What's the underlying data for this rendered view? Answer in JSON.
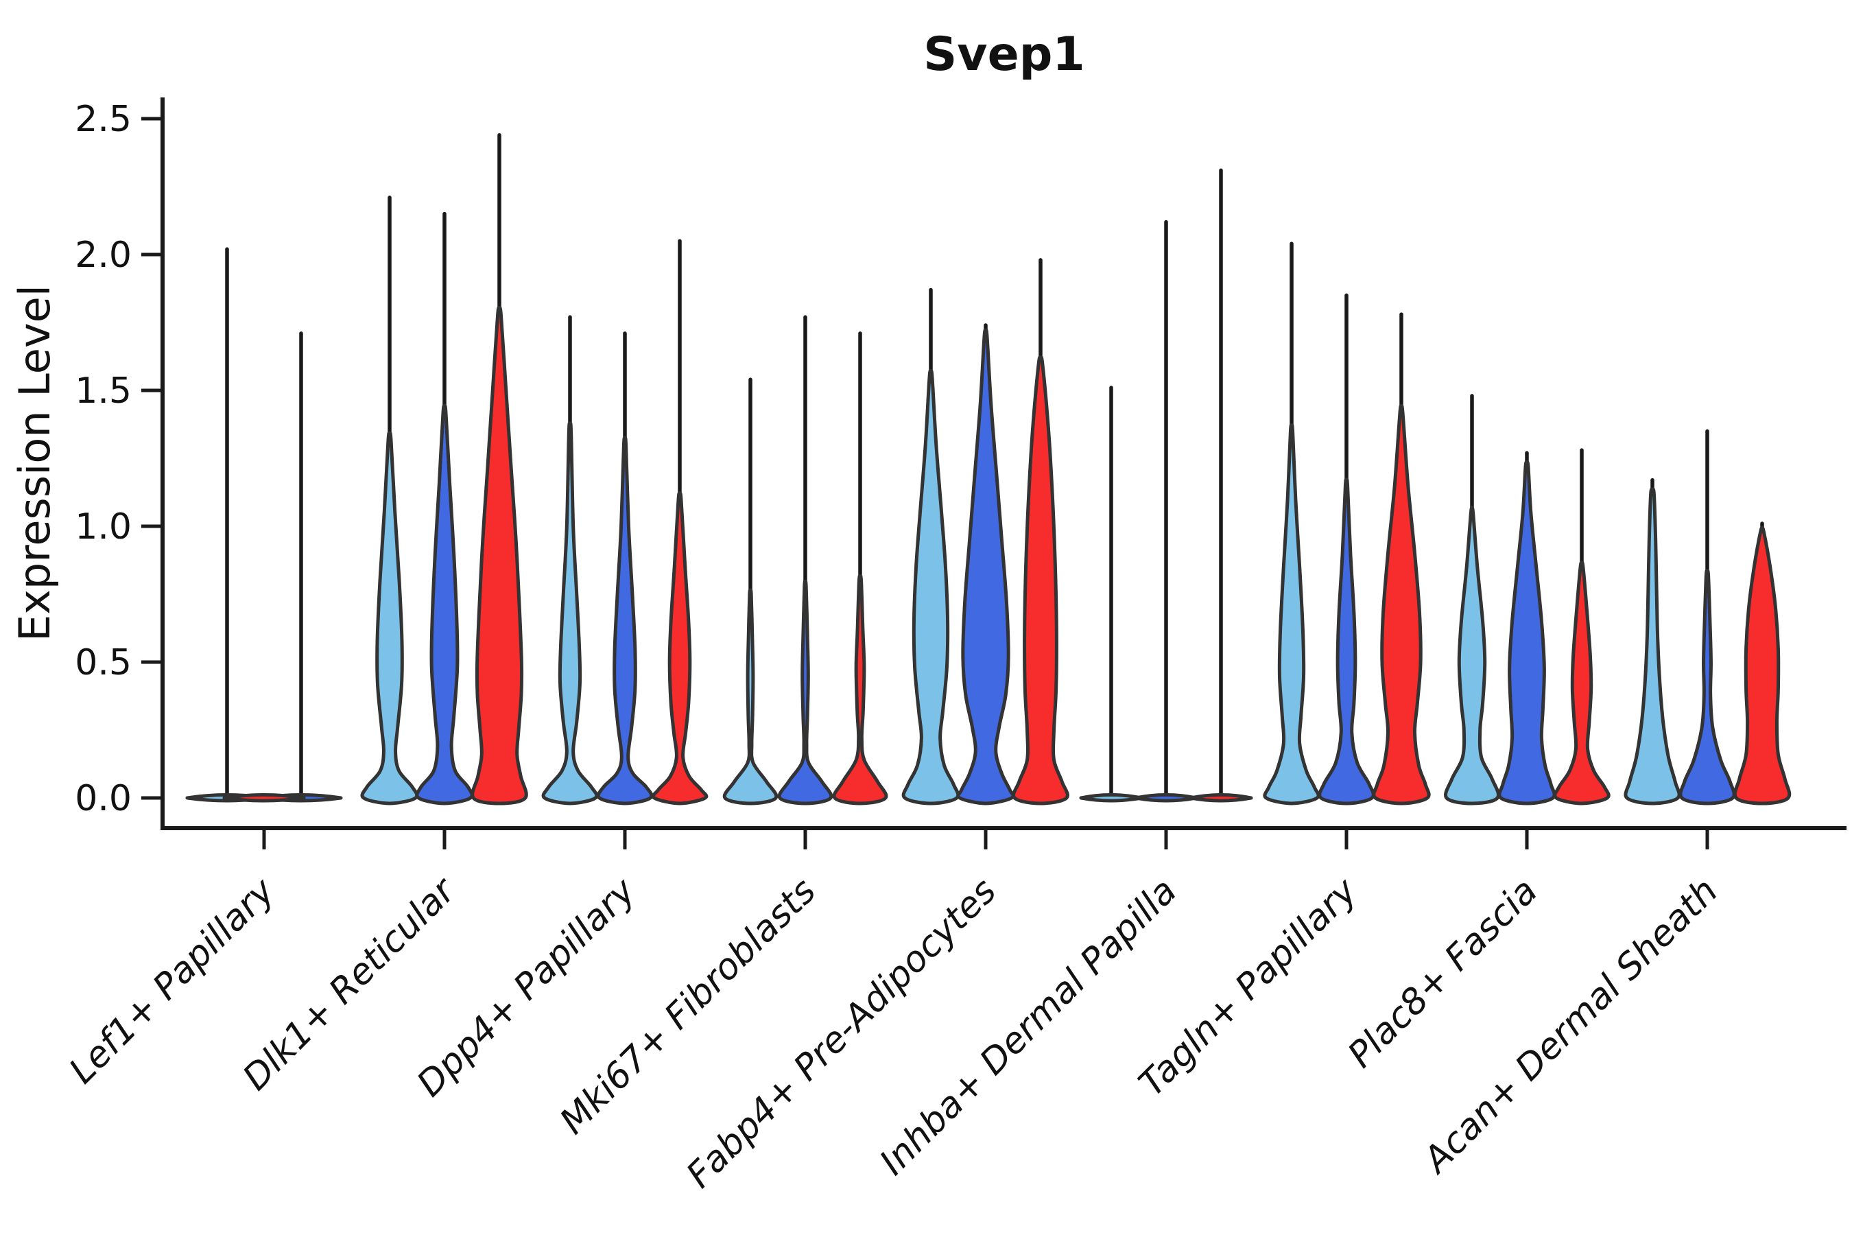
{
  "title": "Svep1",
  "chart_data": {
    "type": "violin",
    "title": "Svep1",
    "ylabel": "Expression Level",
    "xlabel": "",
    "ylim": [
      0,
      2.5
    ],
    "yticks": [
      0.0,
      0.5,
      1.0,
      1.5,
      2.0,
      2.5
    ],
    "grid": false,
    "legend": "none",
    "colors": {
      "series": [
        "#7CC2E8",
        "#4169E1",
        "#F72C2C"
      ],
      "outline": "#333333",
      "axis": "#1a1a1a",
      "background": "#ffffff"
    },
    "categories": [
      "Lef1+ Papillary",
      "Dlk1+ Reticular",
      "Dpp4+ Papillary",
      "Mki67+ Fibroblasts",
      "Fabp4+ Pre-Adipocytes",
      "Inhba+ Dermal Papilla",
      "Tagln+ Papillary",
      "Plac8+ Fascia",
      "Acan+ Dermal Sheath"
    ],
    "groups": [
      {
        "label": "Lef1+ Papillary",
        "violins": [
          {
            "series": 0,
            "max": 2.02,
            "flat": true,
            "xoff": -54,
            "lens_hw": 58
          },
          {
            "series": 1,
            "max": 1.71,
            "flat": true,
            "xoff": 54,
            "lens_hw": 58
          },
          {
            "series": 2,
            "max": 0.0,
            "flat": true,
            "xoff": 0,
            "lens_hw": 58
          }
        ]
      },
      {
        "label": "Dlk1+ Reticular",
        "violins": [
          {
            "series": 0,
            "max": 2.21,
            "profile": [
              [
                1.32,
                0.05
              ],
              [
                1.05,
                0.2
              ],
              [
                0.8,
                0.36
              ],
              [
                0.58,
                0.46
              ],
              [
                0.42,
                0.45
              ],
              [
                0.26,
                0.3
              ],
              [
                0.17,
                0.22
              ],
              [
                0.1,
                0.35
              ],
              [
                0.04,
                0.85
              ],
              [
                0,
                0.97
              ]
            ]
          },
          {
            "series": 1,
            "max": 2.15,
            "profile": [
              [
                1.42,
                0.05
              ],
              [
                1.15,
                0.2
              ],
              [
                0.9,
                0.35
              ],
              [
                0.65,
                0.46
              ],
              [
                0.48,
                0.48
              ],
              [
                0.3,
                0.35
              ],
              [
                0.19,
                0.26
              ],
              [
                0.1,
                0.4
              ],
              [
                0.04,
                0.88
              ],
              [
                0,
                0.97
              ]
            ]
          },
          {
            "series": 2,
            "max": 2.44,
            "profile": [
              [
                1.78,
                0.06
              ],
              [
                1.5,
                0.25
              ],
              [
                1.2,
                0.45
              ],
              [
                0.95,
                0.62
              ],
              [
                0.7,
                0.75
              ],
              [
                0.5,
                0.83
              ],
              [
                0.38,
                0.82
              ],
              [
                0.25,
                0.72
              ],
              [
                0.16,
                0.66
              ],
              [
                0.08,
                0.8
              ],
              [
                0,
                0.97
              ]
            ]
          }
        ]
      },
      {
        "label": "Dpp4+ Papillary",
        "violins": [
          {
            "series": 0,
            "max": 1.77,
            "profile": [
              [
                1.35,
                0.04
              ],
              [
                1.0,
                0.12
              ],
              [
                0.75,
                0.25
              ],
              [
                0.55,
                0.35
              ],
              [
                0.42,
                0.37
              ],
              [
                0.28,
                0.25
              ],
              [
                0.17,
                0.12
              ],
              [
                0.1,
                0.3
              ],
              [
                0.04,
                0.8
              ],
              [
                0,
                0.95
              ]
            ]
          },
          {
            "series": 1,
            "max": 1.71,
            "profile": [
              [
                1.3,
                0.04
              ],
              [
                1.0,
                0.14
              ],
              [
                0.75,
                0.28
              ],
              [
                0.55,
                0.38
              ],
              [
                0.4,
                0.38
              ],
              [
                0.26,
                0.25
              ],
              [
                0.15,
                0.12
              ],
              [
                0.09,
                0.3
              ],
              [
                0.04,
                0.8
              ],
              [
                0,
                0.95
              ]
            ]
          },
          {
            "series": 2,
            "max": 2.05,
            "profile": [
              [
                1.1,
                0.05
              ],
              [
                0.85,
                0.2
              ],
              [
                0.65,
                0.33
              ],
              [
                0.5,
                0.38
              ],
              [
                0.35,
                0.33
              ],
              [
                0.24,
                0.22
              ],
              [
                0.15,
                0.12
              ],
              [
                0.08,
                0.35
              ],
              [
                0.03,
                0.8
              ],
              [
                0,
                0.95
              ]
            ]
          }
        ]
      },
      {
        "label": "Mki67+ Fibroblasts",
        "violins": [
          {
            "series": 0,
            "max": 1.54,
            "profile": [
              [
                0.75,
                0.03
              ],
              [
                0.6,
                0.07
              ],
              [
                0.45,
                0.1
              ],
              [
                0.3,
                0.08
              ],
              [
                0.2,
                0.05
              ],
              [
                0.13,
                0.1
              ],
              [
                0.06,
                0.6
              ],
              [
                0,
                0.95
              ]
            ]
          },
          {
            "series": 1,
            "max": 1.77,
            "profile": [
              [
                0.78,
                0.03
              ],
              [
                0.6,
                0.08
              ],
              [
                0.45,
                0.11
              ],
              [
                0.3,
                0.08
              ],
              [
                0.2,
                0.05
              ],
              [
                0.13,
                0.12
              ],
              [
                0.06,
                0.62
              ],
              [
                0,
                0.95
              ]
            ]
          },
          {
            "series": 2,
            "max": 1.71,
            "profile": [
              [
                0.8,
                0.04
              ],
              [
                0.62,
                0.1
              ],
              [
                0.48,
                0.15
              ],
              [
                0.32,
                0.11
              ],
              [
                0.22,
                0.06
              ],
              [
                0.14,
                0.15
              ],
              [
                0.06,
                0.65
              ],
              [
                0,
                0.95
              ]
            ]
          }
        ]
      },
      {
        "label": "Fabp4+ Pre-Adipocytes",
        "violins": [
          {
            "series": 0,
            "max": 1.87,
            "profile": [
              [
                1.55,
                0.05
              ],
              [
                1.3,
                0.2
              ],
              [
                1.05,
                0.4
              ],
              [
                0.85,
                0.55
              ],
              [
                0.65,
                0.63
              ],
              [
                0.48,
                0.6
              ],
              [
                0.32,
                0.45
              ],
              [
                0.22,
                0.35
              ],
              [
                0.12,
                0.5
              ],
              [
                0.05,
                0.85
              ],
              [
                0,
                0.97
              ]
            ]
          },
          {
            "series": 1,
            "max": 1.74,
            "profile": [
              [
                1.7,
                0.05
              ],
              [
                1.45,
                0.2
              ],
              [
                1.2,
                0.4
              ],
              [
                0.95,
                0.6
              ],
              [
                0.72,
                0.78
              ],
              [
                0.52,
                0.85
              ],
              [
                0.38,
                0.75
              ],
              [
                0.26,
                0.5
              ],
              [
                0.17,
                0.38
              ],
              [
                0.09,
                0.6
              ],
              [
                0.03,
                0.9
              ],
              [
                0,
                0.97
              ]
            ]
          },
          {
            "series": 2,
            "max": 1.98,
            "profile": [
              [
                1.6,
                0.07
              ],
              [
                1.35,
                0.3
              ],
              [
                1.1,
                0.45
              ],
              [
                0.85,
                0.55
              ],
              [
                0.6,
                0.6
              ],
              [
                0.4,
                0.58
              ],
              [
                0.25,
                0.5
              ],
              [
                0.14,
                0.5
              ],
              [
                0.06,
                0.8
              ],
              [
                0,
                0.97
              ]
            ]
          }
        ]
      },
      {
        "label": "Inhba+ Dermal Papilla",
        "violins": [
          {
            "series": 0,
            "max": 1.51,
            "flat": true,
            "xoff": -80,
            "lens_hw": 44
          },
          {
            "series": 1,
            "max": 2.12,
            "flat": true,
            "xoff": 0,
            "lens_hw": 44
          },
          {
            "series": 2,
            "max": 2.31,
            "flat": true,
            "xoff": 80,
            "lens_hw": 44
          }
        ]
      },
      {
        "label": "Tagln+ Papillary",
        "violins": [
          {
            "series": 0,
            "max": 2.04,
            "profile": [
              [
                1.35,
                0.04
              ],
              [
                1.1,
                0.15
              ],
              [
                0.85,
                0.3
              ],
              [
                0.62,
                0.42
              ],
              [
                0.45,
                0.45
              ],
              [
                0.3,
                0.35
              ],
              [
                0.2,
                0.3
              ],
              [
                0.1,
                0.55
              ],
              [
                0.04,
                0.85
              ],
              [
                0,
                0.95
              ]
            ]
          },
          {
            "series": 1,
            "max": 1.85,
            "profile": [
              [
                1.15,
                0.04
              ],
              [
                0.9,
                0.15
              ],
              [
                0.68,
                0.28
              ],
              [
                0.5,
                0.33
              ],
              [
                0.35,
                0.28
              ],
              [
                0.24,
                0.2
              ],
              [
                0.13,
                0.4
              ],
              [
                0.05,
                0.85
              ],
              [
                0,
                0.95
              ]
            ]
          },
          {
            "series": 2,
            "max": 1.78,
            "profile": [
              [
                1.42,
                0.05
              ],
              [
                1.15,
                0.25
              ],
              [
                0.9,
                0.5
              ],
              [
                0.68,
                0.68
              ],
              [
                0.5,
                0.72
              ],
              [
                0.35,
                0.6
              ],
              [
                0.24,
                0.5
              ],
              [
                0.12,
                0.65
              ],
              [
                0.05,
                0.9
              ],
              [
                0,
                0.97
              ]
            ]
          }
        ]
      },
      {
        "label": "Plac8+ Fascia",
        "violins": [
          {
            "series": 0,
            "max": 1.48,
            "profile": [
              [
                1.05,
                0.04
              ],
              [
                0.85,
                0.2
              ],
              [
                0.65,
                0.4
              ],
              [
                0.5,
                0.48
              ],
              [
                0.35,
                0.4
              ],
              [
                0.25,
                0.3
              ],
              [
                0.15,
                0.35
              ],
              [
                0.07,
                0.75
              ],
              [
                0,
                0.95
              ]
            ]
          },
          {
            "series": 1,
            "max": 1.27,
            "profile": [
              [
                1.22,
                0.05
              ],
              [
                1.05,
                0.15
              ],
              [
                0.85,
                0.35
              ],
              [
                0.65,
                0.55
              ],
              [
                0.48,
                0.65
              ],
              [
                0.33,
                0.6
              ],
              [
                0.22,
                0.55
              ],
              [
                0.12,
                0.68
              ],
              [
                0.05,
                0.9
              ],
              [
                0,
                0.97
              ]
            ]
          },
          {
            "series": 2,
            "max": 1.28,
            "profile": [
              [
                0.85,
                0.05
              ],
              [
                0.68,
                0.2
              ],
              [
                0.52,
                0.32
              ],
              [
                0.4,
                0.35
              ],
              [
                0.28,
                0.28
              ],
              [
                0.18,
                0.22
              ],
              [
                0.1,
                0.45
              ],
              [
                0.04,
                0.85
              ],
              [
                0,
                0.95
              ]
            ]
          }
        ]
      },
      {
        "label": "Acan+ Dermal Sheath",
        "violins": [
          {
            "series": 0,
            "max": 1.17,
            "profile": [
              [
                1.12,
                0.06
              ],
              [
                0.95,
                0.12
              ],
              [
                0.75,
                0.16
              ],
              [
                0.58,
                0.2
              ],
              [
                0.42,
                0.28
              ],
              [
                0.28,
                0.4
              ],
              [
                0.15,
                0.6
              ],
              [
                0.06,
                0.85
              ],
              [
                0,
                0.95
              ]
            ]
          },
          {
            "series": 1,
            "max": 1.35,
            "profile": [
              [
                0.82,
                0.04
              ],
              [
                0.65,
                0.1
              ],
              [
                0.5,
                0.14
              ],
              [
                0.38,
                0.12
              ],
              [
                0.26,
                0.2
              ],
              [
                0.14,
                0.5
              ],
              [
                0.06,
                0.85
              ],
              [
                0,
                0.95
              ]
            ]
          },
          {
            "series": 2,
            "max": 1.01,
            "profile": [
              [
                0.98,
                0.06
              ],
              [
                0.85,
                0.3
              ],
              [
                0.7,
                0.5
              ],
              [
                0.55,
                0.6
              ],
              [
                0.4,
                0.6
              ],
              [
                0.28,
                0.55
              ],
              [
                0.16,
                0.6
              ],
              [
                0.07,
                0.85
              ],
              [
                0,
                0.97
              ]
            ]
          }
        ]
      }
    ]
  }
}
